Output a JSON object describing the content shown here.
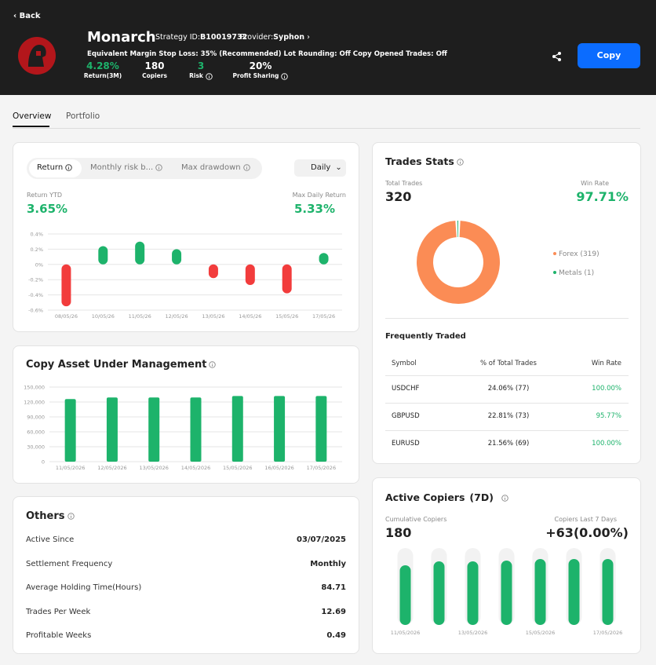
{
  "header": {
    "back": "Back",
    "name": "Monarch",
    "strategy_id_label": "Strategy ID:",
    "strategy_id": "B10019732",
    "provider_label": "Provider:",
    "provider": "Syphon",
    "settings": "Equivalent Margin Stop Loss: 35% (Recommended) Lot Rounding: Off Copy Opened Trades: Off",
    "stats": [
      {
        "value": "4.28%",
        "label": "Return(3M)"
      },
      {
        "value": "180",
        "label": "Copiers"
      },
      {
        "value": "3",
        "label": "Risk"
      },
      {
        "value": "20%",
        "label": "Profit Sharing"
      }
    ],
    "copy_button": "Copy"
  },
  "tabs": [
    "Overview",
    "Portfolio"
  ],
  "return_card": {
    "tabs": [
      "Return",
      "Monthly risk b...",
      "Max drawdown"
    ],
    "period": "Daily",
    "return_ytd_label": "Return YTD",
    "return_ytd": "3.65%",
    "max_daily_label": "Max Daily Return",
    "max_daily": "5.33%",
    "chart": {
      "type": "bar",
      "categories": [
        "08/05/26",
        "10/05/26",
        "11/05/26",
        "12/05/26",
        "13/05/26",
        "14/05/26",
        "15/05/26",
        "17/05/26"
      ],
      "values": [
        -0.55,
        0.24,
        0.3,
        0.2,
        -0.18,
        -0.27,
        -0.38,
        0.15
      ],
      "ylim": [
        -0.6,
        0.4
      ],
      "yticks": [
        {
          "value": 0.4,
          "label": "0.4%"
        },
        {
          "value": 0.2,
          "label": "0.2%"
        },
        {
          "value": 0,
          "label": "0%"
        },
        {
          "value": -0.2,
          "label": "-0.2%"
        },
        {
          "value": -0.4,
          "label": "-0.4%"
        },
        {
          "value": -0.6,
          "label": "-0.6%"
        }
      ],
      "positive_color": "#1db36b",
      "negative_color": "#f23c3c",
      "grid": true
    }
  },
  "aum_card": {
    "title": "Copy Asset Under Management",
    "chart": {
      "type": "bar",
      "categories": [
        "11/05/2026",
        "12/05/2026",
        "13/05/2026",
        "14/05/2026",
        "15/05/2026",
        "16/05/2026",
        "17/05/2026"
      ],
      "values": [
        126000,
        129000,
        129000,
        129000,
        132000,
        132000,
        132000
      ],
      "ylim": [
        0,
        150000
      ],
      "yticks": [
        0,
        {
          "value": 30000,
          "label": "30,000"
        },
        {
          "value": 60000,
          "label": "60,000"
        },
        {
          "value": 90000,
          "label": "90,000"
        },
        {
          "value": 120000,
          "label": "120,000"
        },
        {
          "value": 150000,
          "label": "150,000"
        }
      ],
      "color": "#1db36b",
      "grid": true
    }
  },
  "others": {
    "title": "Others",
    "rows": [
      [
        "Active Since",
        "03/07/2025"
      ],
      [
        "Settlement Frequency",
        "Monthly"
      ],
      [
        "Average Holding Time(Hours)",
        "84.71"
      ],
      [
        "Trades Per Week",
        "12.69"
      ],
      [
        "Profitable Weeks",
        "0.49"
      ]
    ]
  },
  "trades_stats": {
    "title": "Trades Stats",
    "total_label": "Total Trades",
    "total": "320",
    "win_rate_label": "Win Rate",
    "win_rate": "97.71%",
    "chart": {
      "type": "pie",
      "donut": true,
      "labels": [
        "Forex (319)",
        "Metals (1)"
      ],
      "values": [
        319,
        1
      ],
      "colors": [
        "#fb8c55",
        "#1db36b"
      ]
    },
    "frequent": {
      "title": "Frequently Traded",
      "columns": [
        "Symbol",
        "% of Total Trades",
        "Win Rate"
      ],
      "rows": [
        [
          "USDCHF",
          "24.06% (77)",
          "100.00%"
        ],
        [
          "GBPUSD",
          "22.81% (73)",
          "95.77%"
        ],
        [
          "EURUSD",
          "21.56% (69)",
          "100.00%"
        ]
      ]
    }
  },
  "active_copiers": {
    "title": "Active Copiers",
    "period": "(7D)",
    "cumulative_label": "Cumulative Copiers",
    "cumulative": "180",
    "last7_label": "Copiers Last 7 Days",
    "last7": "+63(0.00%)",
    "chart": {
      "type": "bar",
      "categories": [
        "11/05/2026",
        null,
        "13/05/2026",
        null,
        "15/05/2026",
        null,
        "17/05/2026"
      ],
      "values": [
        152,
        162,
        162,
        164,
        168,
        168,
        168
      ],
      "ylim": [
        0,
        180
      ],
      "color": "#1db36b"
    }
  }
}
